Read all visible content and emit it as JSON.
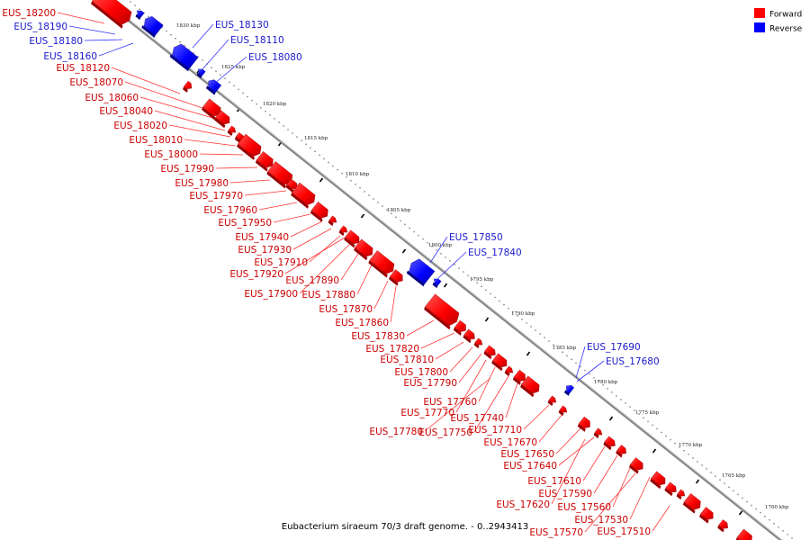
{
  "legend": {
    "forward_label": "Forward",
    "reverse_label": "Reverse",
    "forward_color": "#ff0000",
    "reverse_color": "#0000ff"
  },
  "caption": "Eubacterium siraeum 70/3 draft genome. - 0..2943413",
  "colors": {
    "forward_text": "#cc0000",
    "reverse_text": "#1a1acc",
    "forward_line": "#ff3333",
    "reverse_line": "#3333ff",
    "backbone": "#888888"
  },
  "map": {
    "type": "linear genome map",
    "scale_direction": "decreasing toward lower right",
    "ticks": [
      {
        "label": "1830 kbp",
        "pos_kbp": 1830
      },
      {
        "label": "1825 kbp",
        "pos_kbp": 1825
      },
      {
        "label": "1820 kbp",
        "pos_kbp": 1820
      },
      {
        "label": "1815 kbp",
        "pos_kbp": 1815
      },
      {
        "label": "1810 kbp",
        "pos_kbp": 1810
      },
      {
        "label": "1805 kbp",
        "pos_kbp": 1805
      },
      {
        "label": "1800 kbp",
        "pos_kbp": 1800
      },
      {
        "label": "1795 kbp",
        "pos_kbp": 1795
      },
      {
        "label": "1790 kbp",
        "pos_kbp": 1790
      },
      {
        "label": "1785 kbp",
        "pos_kbp": 1785
      },
      {
        "label": "1780 kbp",
        "pos_kbp": 1780
      },
      {
        "label": "1775 kbp",
        "pos_kbp": 1775
      },
      {
        "label": "1770 kbp",
        "pos_kbp": 1770
      },
      {
        "label": "1765 kbp",
        "pos_kbp": 1765
      },
      {
        "label": "1760 kbp",
        "pos_kbp": 1760
      }
    ],
    "genes": [
      {
        "name": "EUS_18200",
        "strand": "forward"
      },
      {
        "name": "EUS_18190",
        "strand": "reverse"
      },
      {
        "name": "EUS_18180",
        "strand": "reverse"
      },
      {
        "name": "EUS_18160",
        "strand": "reverse"
      },
      {
        "name": "EUS_18130",
        "strand": "reverse"
      },
      {
        "name": "EUS_18110",
        "strand": "reverse"
      },
      {
        "name": "EUS_18080",
        "strand": "reverse"
      },
      {
        "name": "EUS_18120",
        "strand": "forward"
      },
      {
        "name": "EUS_18070",
        "strand": "forward"
      },
      {
        "name": "EUS_18060",
        "strand": "forward"
      },
      {
        "name": "EUS_18040",
        "strand": "forward"
      },
      {
        "name": "EUS_18020",
        "strand": "forward"
      },
      {
        "name": "EUS_18010",
        "strand": "forward"
      },
      {
        "name": "EUS_18000",
        "strand": "forward"
      },
      {
        "name": "EUS_17990",
        "strand": "forward"
      },
      {
        "name": "EUS_17980",
        "strand": "forward"
      },
      {
        "name": "EUS_17970",
        "strand": "forward"
      },
      {
        "name": "EUS_17960",
        "strand": "forward"
      },
      {
        "name": "EUS_17950",
        "strand": "forward"
      },
      {
        "name": "EUS_17940",
        "strand": "forward"
      },
      {
        "name": "EUS_17930",
        "strand": "forward"
      },
      {
        "name": "EUS_17910",
        "strand": "forward"
      },
      {
        "name": "EUS_17920",
        "strand": "forward"
      },
      {
        "name": "EUS_17890",
        "strand": "forward"
      },
      {
        "name": "EUS_17900",
        "strand": "forward"
      },
      {
        "name": "EUS_17880",
        "strand": "forward"
      },
      {
        "name": "EUS_17850",
        "strand": "reverse"
      },
      {
        "name": "EUS_17840",
        "strand": "reverse"
      },
      {
        "name": "EUS_17870",
        "strand": "forward"
      },
      {
        "name": "EUS_17860",
        "strand": "forward"
      },
      {
        "name": "EUS_17830",
        "strand": "forward"
      },
      {
        "name": "EUS_17820",
        "strand": "forward"
      },
      {
        "name": "EUS_17810",
        "strand": "forward"
      },
      {
        "name": "EUS_17800",
        "strand": "forward"
      },
      {
        "name": "EUS_17790",
        "strand": "forward"
      },
      {
        "name": "EUS_17690",
        "strand": "reverse"
      },
      {
        "name": "EUS_17680",
        "strand": "reverse"
      },
      {
        "name": "EUS_17760",
        "strand": "forward"
      },
      {
        "name": "EUS_17770",
        "strand": "forward"
      },
      {
        "name": "EUS_17740",
        "strand": "forward"
      },
      {
        "name": "EUS_17780",
        "strand": "forward"
      },
      {
        "name": "EUS_17750",
        "strand": "forward"
      },
      {
        "name": "EUS_17710",
        "strand": "forward"
      },
      {
        "name": "EUS_17670",
        "strand": "forward"
      },
      {
        "name": "EUS_17650",
        "strand": "forward"
      },
      {
        "name": "EUS_17640",
        "strand": "forward"
      },
      {
        "name": "EUS_17610",
        "strand": "forward"
      },
      {
        "name": "EUS_17590",
        "strand": "forward"
      },
      {
        "name": "EUS_17620",
        "strand": "forward"
      },
      {
        "name": "EUS_17560",
        "strand": "forward"
      },
      {
        "name": "EUS_17530",
        "strand": "forward"
      },
      {
        "name": "EUS_17570",
        "strand": "forward"
      },
      {
        "name": "EUS_17510",
        "strand": "forward"
      }
    ]
  }
}
